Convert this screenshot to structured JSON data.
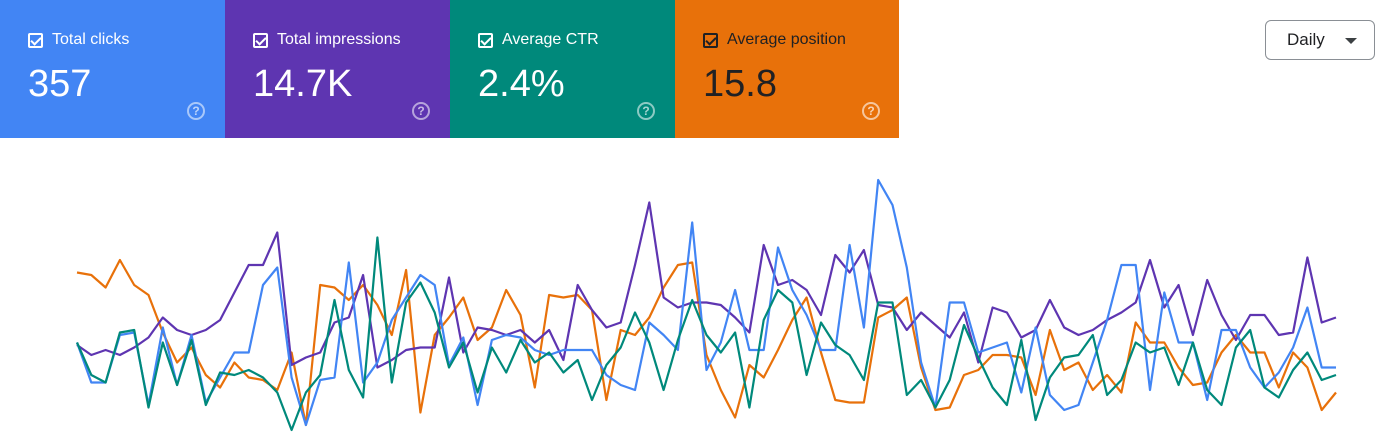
{
  "cards": [
    {
      "label": "Total clicks",
      "value": "357",
      "color": "#4285f4"
    },
    {
      "label": "Total impressions",
      "value": "14.7K",
      "color": "#5e35b1"
    },
    {
      "label": "Average CTR",
      "value": "2.4%",
      "color": "#00897b"
    },
    {
      "label": "Average position",
      "value": "15.8",
      "color": "#e8710a"
    }
  ],
  "help_glyph": "?",
  "granularity": {
    "label": "Daily",
    "icon": "chevron-down-icon"
  },
  "chart_data": {
    "type": "line",
    "grid": false,
    "axes_visible": false,
    "note": "Four independently scaled metric series, values are relative levels (0-100) read from the plot",
    "x": [
      1,
      2,
      3,
      4,
      5,
      6,
      7,
      8,
      9,
      10,
      11,
      12,
      13,
      14,
      15,
      16,
      17,
      18,
      19,
      20,
      21,
      22,
      23,
      24,
      25,
      26,
      27,
      28,
      29,
      30,
      31,
      32,
      33,
      34,
      35,
      36,
      37,
      38,
      39,
      40,
      41,
      42,
      43,
      44,
      45,
      46,
      47,
      48,
      49,
      50,
      51,
      52,
      53,
      54,
      55,
      56,
      57,
      58,
      59,
      60,
      61,
      62,
      63,
      64,
      65,
      66,
      67,
      68,
      69,
      70,
      71,
      72,
      73,
      74,
      75,
      76,
      77,
      78,
      79,
      80,
      81,
      82,
      83,
      84,
      85,
      86,
      87,
      88,
      89
    ],
    "series": [
      {
        "color": "#e8710a",
        "values": [
          63,
          62,
          57,
          68,
          58,
          54,
          39,
          27,
          33,
          22,
          17,
          27,
          21,
          20,
          16,
          31,
          2,
          58,
          57,
          52,
          58,
          50,
          38,
          64,
          7,
          38,
          45,
          53,
          36,
          41,
          56,
          46,
          17,
          54,
          53,
          54,
          48,
          12,
          40,
          38,
          45,
          57,
          66,
          67,
          30,
          16,
          5,
          26,
          21,
          32,
          44,
          53,
          31,
          12,
          11,
          11,
          45,
          48,
          53,
          25,
          8,
          9,
          22,
          24,
          30,
          30,
          29,
          14,
          40,
          24,
          27,
          16,
          22,
          15,
          43,
          35,
          35,
          25,
          18,
          19,
          31,
          38,
          31,
          31,
          17,
          31,
          25,
          8,
          15
        ]
      },
      {
        "color": "#5e35b1",
        "values": [
          34,
          30,
          32,
          30,
          33,
          37,
          45,
          40,
          38,
          40,
          44,
          55,
          66,
          66,
          79,
          26,
          29,
          31,
          43,
          45,
          62,
          25,
          28,
          32,
          33,
          33,
          61,
          31,
          41,
          40,
          38,
          40,
          35,
          40,
          28,
          58,
          48,
          41,
          43,
          66,
          91,
          53,
          49,
          51,
          51,
          50,
          45,
          39,
          74,
          58,
          60,
          56,
          46,
          70,
          63,
          72,
          50,
          49,
          40,
          47,
          42,
          37,
          47,
          27,
          49,
          47,
          37,
          40,
          52,
          41,
          38,
          40,
          44,
          47,
          51,
          68,
          49,
          58,
          38,
          60,
          46,
          36,
          46,
          46,
          38,
          39,
          69,
          43,
          45
        ]
      },
      {
        "color": "#4285f4",
        "values": [
          35,
          19,
          19,
          38,
          39,
          10,
          41,
          18,
          38,
          11,
          21,
          31,
          31,
          58,
          65,
          21,
          2,
          20,
          21,
          67,
          19,
          27,
          44,
          53,
          62,
          58,
          26,
          37,
          10,
          36,
          38,
          37,
          32,
          30,
          32,
          32,
          32,
          22,
          18,
          16,
          43,
          38,
          32,
          83,
          24,
          35,
          56,
          32,
          32,
          73,
          56,
          46,
          32,
          32,
          74,
          41,
          100,
          90,
          65,
          27,
          9,
          51,
          51,
          31,
          33,
          35,
          15,
          41,
          14,
          8,
          10,
          27,
          44,
          66,
          66,
          16,
          55,
          35,
          35,
          12,
          40,
          40,
          25,
          17,
          23,
          33,
          49,
          25,
          25
        ]
      },
      {
        "color": "#00897b",
        "values": [
          35,
          22,
          19,
          39,
          40,
          9,
          35,
          18,
          36,
          10,
          23,
          22,
          24,
          21,
          15,
          0,
          15,
          22,
          52,
          24,
          13,
          77,
          19,
          51,
          59,
          47,
          25,
          35,
          15,
          33,
          23,
          36,
          27,
          31,
          23,
          28,
          12,
          26,
          33,
          47,
          35,
          16,
          36,
          52,
          38,
          31,
          39,
          9,
          44,
          56,
          51,
          22,
          43,
          34,
          30,
          20,
          51,
          51,
          14,
          20,
          9,
          20,
          42,
          29,
          17,
          10,
          36,
          4,
          21,
          29,
          30,
          38,
          14,
          20,
          35,
          31,
          33,
          18,
          35,
          16,
          10,
          33,
          40,
          17,
          13,
          24,
          31,
          20,
          22
        ]
      }
    ]
  }
}
